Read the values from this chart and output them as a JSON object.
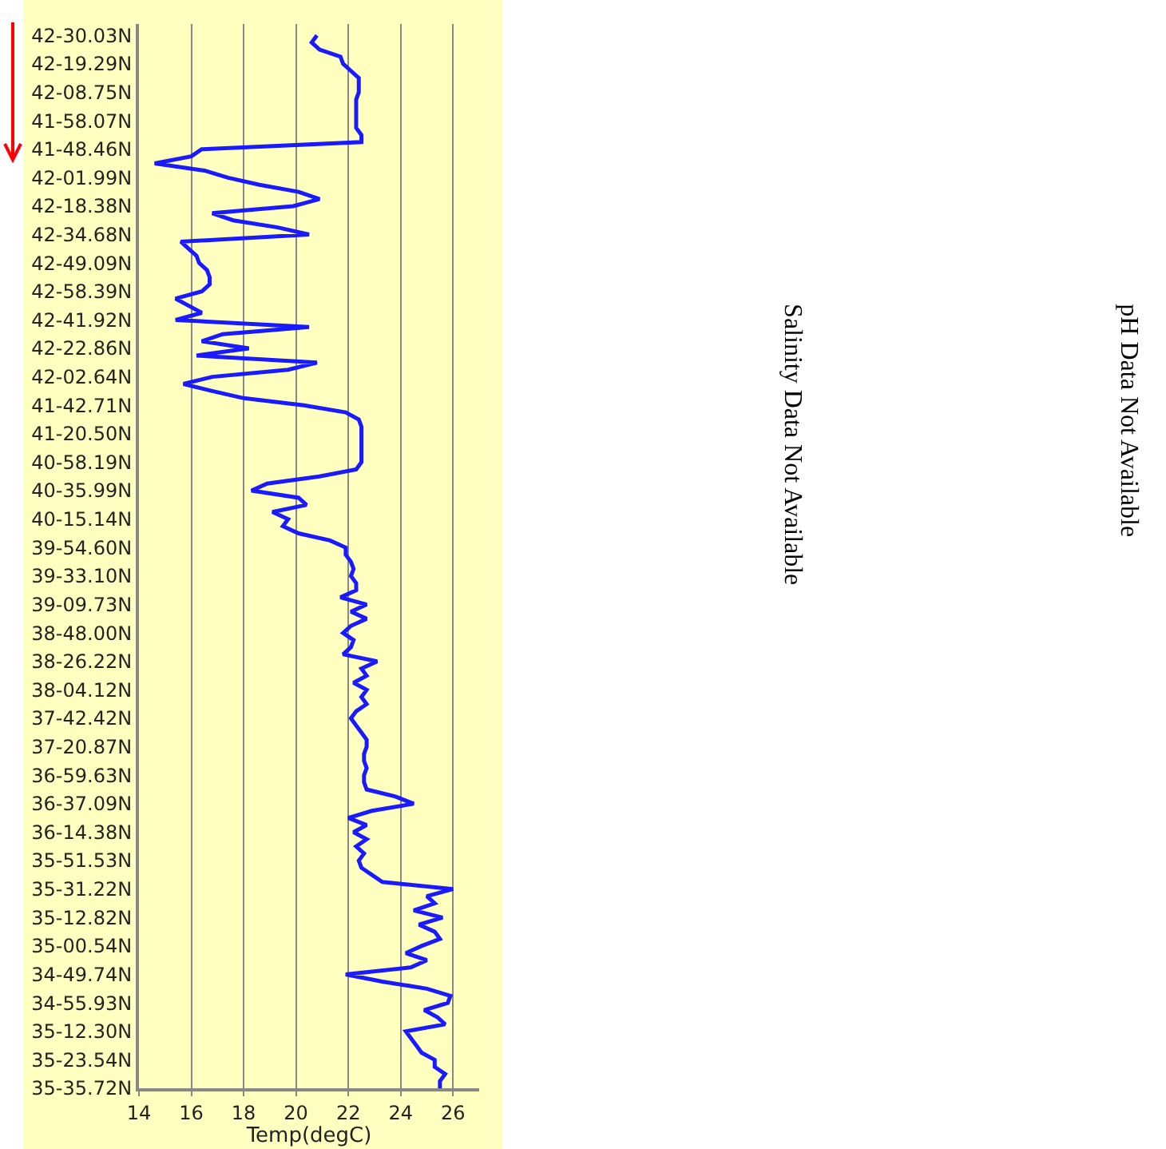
{
  "chart_data": {
    "type": "line",
    "orientation": "horizontal",
    "xlabel": "Temp(degC)",
    "xlim": [
      14,
      27
    ],
    "xticks": [
      14,
      16,
      18,
      20,
      22,
      24,
      26
    ],
    "grid": "x",
    "annotations": [
      "Salinity Data Not Available",
      "pH Data Not Available"
    ],
    "categories": [
      "42-30.03N",
      null,
      null,
      null,
      "42-19.29N",
      null,
      null,
      null,
      "42-08.75N",
      null,
      null,
      null,
      "41-58.07N",
      null,
      null,
      null,
      "41-48.46N",
      null,
      null,
      null,
      "42-01.99N",
      null,
      null,
      null,
      "42-18.38N",
      null,
      null,
      null,
      "42-34.68N",
      null,
      null,
      null,
      "42-49.09N",
      null,
      null,
      null,
      "42-58.39N",
      null,
      null,
      null,
      "42-41.92N",
      null,
      null,
      null,
      "42-22.86N",
      null,
      null,
      null,
      "42-02.64N",
      null,
      null,
      null,
      "41-42.71N",
      null,
      null,
      null,
      "41-20.50N",
      null,
      null,
      null,
      "40-58.19N",
      null,
      null,
      null,
      "40-35.99N",
      null,
      null,
      null,
      "40-15.14N",
      null,
      null,
      null,
      "39-54.60N",
      null,
      null,
      null,
      "39-33.10N",
      null,
      null,
      null,
      "39-09.73N",
      null,
      null,
      null,
      "38-48.00N",
      null,
      null,
      null,
      "38-26.22N",
      null,
      null,
      null,
      "38-04.12N",
      null,
      null,
      null,
      "37-42.42N",
      null,
      null,
      null,
      "37-20.87N",
      null,
      null,
      null,
      "36-59.63N",
      null,
      null,
      null,
      "36-37.09N",
      null,
      null,
      null,
      "36-14.38N",
      null,
      null,
      null,
      "35-51.53N",
      null,
      null,
      null,
      "35-31.22N",
      null,
      null,
      null,
      "35-12.82N",
      null,
      null,
      null,
      "35-00.54N",
      null,
      null,
      null,
      "34-49.74N",
      null,
      null,
      null,
      "34-55.93N",
      null,
      null,
      null,
      "35-12.30N",
      null,
      null,
      null,
      "35-23.54N",
      null,
      null,
      null,
      "35-35.72N"
    ],
    "series": [
      {
        "color": "#1a1aff",
        "values": [
          20.8,
          20.6,
          20.9,
          21.7,
          21.8,
          22.1,
          22.4,
          22.4,
          22.4,
          22.3,
          22.3,
          22.3,
          22.3,
          22.3,
          22.5,
          22.5,
          16.4,
          16.0,
          14.6,
          16.5,
          17.4,
          18.6,
          20.1,
          20.9,
          19.9,
          16.8,
          17.6,
          19.3,
          20.5,
          15.6,
          15.9,
          16.2,
          16.3,
          16.6,
          16.7,
          16.7,
          16.4,
          15.4,
          15.9,
          16.4,
          15.4,
          20.5,
          17.2,
          16.4,
          18.2,
          16.2,
          20.8,
          19.7,
          16.8,
          15.7,
          16.8,
          18.0,
          20.3,
          21.9,
          22.4,
          22.5,
          22.5,
          22.5,
          22.5,
          22.5,
          22.5,
          22.3,
          20.9,
          18.9,
          18.3,
          20.1,
          20.4,
          19.1,
          19.7,
          19.5,
          20.1,
          21.3,
          21.9,
          21.9,
          22.1,
          22.2,
          22.1,
          22.3,
          22.3,
          21.7,
          22.7,
          22.1,
          22.7,
          22.1,
          21.8,
          22.2,
          22.1,
          21.8,
          23.1,
          22.5,
          22.7,
          22.2,
          22.7,
          22.5,
          22.7,
          22.3,
          22.1,
          22.3,
          22.5,
          22.7,
          22.7,
          22.6,
          22.6,
          22.7,
          22.6,
          22.6,
          22.7,
          23.8,
          24.5,
          22.9,
          22.0,
          22.7,
          22.2,
          22.7,
          22.3,
          22.6,
          22.4,
          22.5,
          22.9,
          23.3,
          26.0,
          25.0,
          25.3,
          24.5,
          25.6,
          24.7,
          25.3,
          25.5,
          24.8,
          24.2,
          25.0,
          24.4,
          21.9,
          23.3,
          25.0,
          25.9,
          25.8,
          24.9,
          25.4,
          25.7,
          24.2,
          24.4,
          24.6,
          24.8,
          25.3,
          25.3,
          25.7,
          25.5,
          25.5
        ]
      }
    ]
  }
}
